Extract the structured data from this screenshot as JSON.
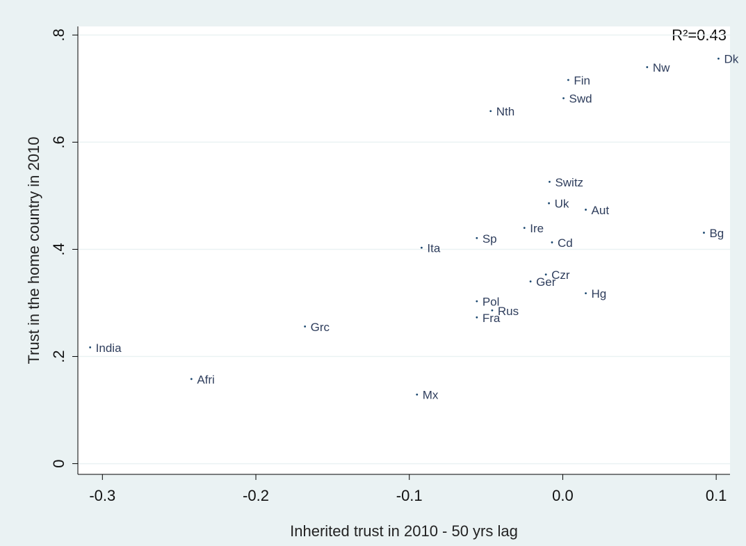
{
  "chart_data": {
    "type": "scatter",
    "xlabel": "Inherited trust in 2010 - 50 yrs lag",
    "ylabel": "Trust in the home country in 2010",
    "annotation": "R²=0.43",
    "color": "#1a476f",
    "grid": true,
    "x": [
      0.1015,
      0.055,
      0.0036,
      0.0005,
      -0.047,
      -0.0086,
      -0.009,
      0.015,
      -0.025,
      0.092,
      -0.056,
      -0.007,
      -0.092,
      -0.011,
      -0.021,
      0.015,
      -0.056,
      -0.046,
      -0.056,
      -0.168,
      -0.308,
      -0.242,
      -0.095
    ],
    "values": [
      0.756,
      0.74,
      0.716,
      0.682,
      0.658,
      0.526,
      0.486,
      0.474,
      0.44,
      0.431,
      0.421,
      0.413,
      0.403,
      0.353,
      0.34,
      0.318,
      0.303,
      0.286,
      0.273,
      0.256,
      0.217,
      0.158,
      0.129
    ],
    "point_labels": [
      "Dk",
      "Nw",
      "Fin",
      "Swd",
      "Nth",
      "Switz",
      "Uk",
      "Aut",
      "Ire",
      "Bg",
      "Sp",
      "Cd",
      "Ita",
      "Czr",
      "Ger",
      "Hg",
      "Pol",
      "Rus",
      "Fra",
      "Grc",
      "India",
      "Afri",
      "Mx"
    ],
    "xlim": [
      -0.316,
      0.109
    ],
    "ylim": [
      -0.02,
      0.816
    ],
    "xticks": [
      -0.3,
      -0.2,
      -0.1,
      {
        "value": 0,
        "label": "0.0"
      },
      0.1
    ],
    "yticks": [
      {
        "value": 0,
        "label": "0"
      },
      {
        "value": 0.2,
        "label": ".2"
      },
      {
        "value": 0.4,
        "label": ".4"
      },
      {
        "value": 0.6,
        "label": ".6"
      },
      {
        "value": 0.8,
        "label": ".8"
      }
    ]
  }
}
